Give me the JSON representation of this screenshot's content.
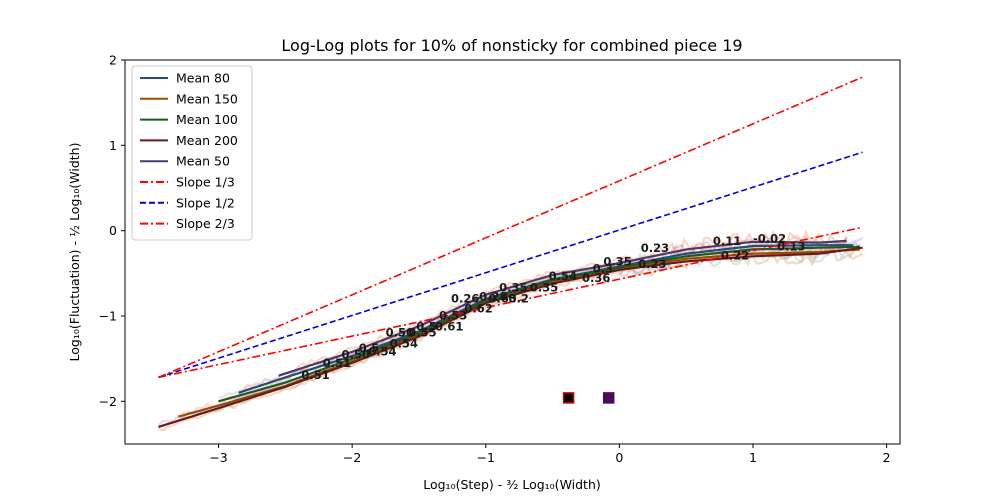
{
  "chart_data": {
    "type": "line",
    "title": "Log-Log plots for 10% of nonsticky for combined piece 19",
    "xlabel": "Log₁₀(Step) - ³⁄₂ Log₁₀(Width)",
    "ylabel": "Log₁₀(Fluctuation) - ½ Log₁₀(Width)",
    "xlim": [
      -3.7,
      2.1
    ],
    "ylim": [
      -2.5,
      2.0
    ],
    "xticks": [
      -3,
      -2,
      -1,
      0,
      1,
      2
    ],
    "yticks": [
      -2,
      -1,
      0,
      1,
      2
    ],
    "grid": false,
    "legend_position": "top-left",
    "series": [
      {
        "name": "Mean 80",
        "color": "#1f4e79",
        "style": "solid",
        "x": [
          -2.85,
          -2.5,
          -2.0,
          -1.5,
          -1.0,
          -0.5,
          0.0,
          0.5,
          1.0,
          1.5,
          1.75
        ],
        "y": [
          -1.9,
          -1.72,
          -1.47,
          -1.18,
          -0.8,
          -0.57,
          -0.42,
          -0.27,
          -0.18,
          -0.17,
          -0.17
        ]
      },
      {
        "name": "Mean 150",
        "color": "#994c00",
        "style": "solid",
        "x": [
          -3.3,
          -3.0,
          -2.5,
          -2.0,
          -1.5,
          -1.0,
          -0.5,
          0.0,
          0.5,
          1.0,
          1.5,
          1.8
        ],
        "y": [
          -2.18,
          -2.05,
          -1.82,
          -1.53,
          -1.22,
          -0.83,
          -0.6,
          -0.44,
          -0.33,
          -0.27,
          -0.25,
          -0.22
        ]
      },
      {
        "name": "Mean 100",
        "color": "#1e5a1e",
        "style": "solid",
        "x": [
          -3.0,
          -2.5,
          -2.0,
          -1.5,
          -1.0,
          -0.5,
          0.0,
          0.5,
          1.0,
          1.5,
          1.8
        ],
        "y": [
          -2.0,
          -1.78,
          -1.5,
          -1.2,
          -0.82,
          -0.58,
          -0.43,
          -0.3,
          -0.22,
          -0.2,
          -0.19
        ]
      },
      {
        "name": "Mean 200",
        "color": "#6b1a1a",
        "style": "solid",
        "x": [
          -3.45,
          -3.0,
          -2.5,
          -2.0,
          -1.5,
          -1.0,
          -0.5,
          0.0,
          0.5,
          1.0,
          1.5,
          1.82
        ],
        "y": [
          -2.3,
          -2.08,
          -1.83,
          -1.55,
          -1.24,
          -0.85,
          -0.62,
          -0.46,
          -0.36,
          -0.3,
          -0.27,
          -0.2
        ]
      },
      {
        "name": "Mean 50",
        "color": "#4b3a6b",
        "style": "solid",
        "x": [
          -2.55,
          -2.0,
          -1.5,
          -1.0,
          -0.5,
          0.0,
          0.5,
          1.0,
          1.5,
          1.7
        ],
        "y": [
          -1.7,
          -1.42,
          -1.12,
          -0.75,
          -0.52,
          -0.38,
          -0.22,
          -0.13,
          -0.14,
          -0.12
        ]
      },
      {
        "name": "Slope 1/3",
        "color": "#ff0000",
        "style": "dashdot",
        "x": [
          -3.45,
          1.82
        ],
        "y": [
          -1.72,
          0.04
        ]
      },
      {
        "name": "Slope 1/2",
        "color": "#0000dd",
        "style": "dashed",
        "x": [
          -3.45,
          1.82
        ],
        "y": [
          -1.72,
          0.92
        ]
      },
      {
        "name": "Slope 2/3",
        "color": "#ff0000",
        "style": "dashdot",
        "x": [
          -3.45,
          1.82
        ],
        "y": [
          -1.72,
          1.8
        ]
      }
    ],
    "annotations": [
      {
        "text": "0.51",
        "x": -2.38,
        "y": -1.74
      },
      {
        "text": "0.51",
        "x": -2.22,
        "y": -1.6
      },
      {
        "text": "0.50",
        "x": -2.08,
        "y": -1.5
      },
      {
        "text": "0.5",
        "x": -1.95,
        "y": -1.42
      },
      {
        "text": "0.54",
        "x": -1.88,
        "y": -1.46
      },
      {
        "text": "0.54",
        "x": -1.72,
        "y": -1.37
      },
      {
        "text": "0.50",
        "x": -1.75,
        "y": -1.24
      },
      {
        "text": "0.55",
        "x": -1.58,
        "y": -1.24
      },
      {
        "text": "0.5",
        "x": -1.52,
        "y": -1.17
      },
      {
        "text": "0.61",
        "x": -1.38,
        "y": -1.17
      },
      {
        "text": "0.53",
        "x": -1.35,
        "y": -1.04
      },
      {
        "text": "0.62",
        "x": -1.16,
        "y": -0.96
      },
      {
        "text": "0.26",
        "x": -1.26,
        "y": -0.84
      },
      {
        "text": "0.28",
        "x": -1.05,
        "y": -0.82
      },
      {
        "text": "0.63",
        "x": -0.98,
        "y": -0.84
      },
      {
        "text": "0.2",
        "x": -0.83,
        "y": -0.84
      },
      {
        "text": "0.35",
        "x": -0.9,
        "y": -0.71
      },
      {
        "text": "0.35",
        "x": -0.67,
        "y": -0.71
      },
      {
        "text": "0.54",
        "x": -0.53,
        "y": -0.58
      },
      {
        "text": "0.36",
        "x": -0.28,
        "y": -0.6
      },
      {
        "text": "0.3",
        "x": -0.2,
        "y": -0.49
      },
      {
        "text": "0.35",
        "x": -0.12,
        "y": -0.41
      },
      {
        "text": "0.23",
        "x": 0.16,
        "y": -0.25
      },
      {
        "text": "0.23",
        "x": 0.14,
        "y": -0.44
      },
      {
        "text": "0.11",
        "x": 0.7,
        "y": -0.17
      },
      {
        "text": "0.22",
        "x": 0.76,
        "y": -0.34
      },
      {
        "text": "-0.02",
        "x": 1.0,
        "y": -0.14
      },
      {
        "text": "0.13",
        "x": 1.18,
        "y": -0.23
      }
    ],
    "markers": [
      {
        "x": -0.38,
        "y": -1.96,
        "color": "#000000",
        "edge": "#cc0000"
      },
      {
        "x": -0.08,
        "y": -1.96,
        "color": "#4b0a5a",
        "edge": "#4b0a5a"
      }
    ]
  }
}
